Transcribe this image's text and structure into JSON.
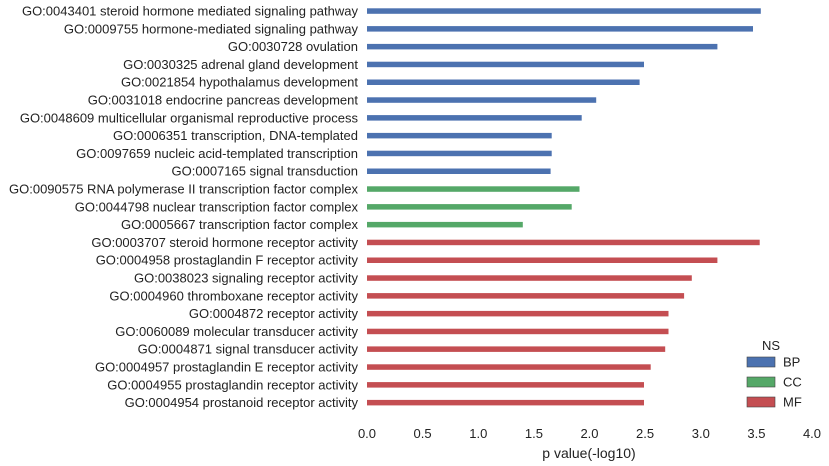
{
  "chart_data": {
    "type": "bar",
    "orientation": "horizontal",
    "xlabel": "p value(-log10)",
    "ylabel": "",
    "xlim": [
      0.0,
      4.0
    ],
    "xticks": [
      "0.0",
      "0.5",
      "1.0",
      "1.5",
      "2.0",
      "2.5",
      "3.0",
      "3.5",
      "4.0"
    ],
    "grid": false,
    "legend": {
      "title": "NS",
      "placement": "lower-right",
      "entries": [
        {
          "name": "BP",
          "color": "#4c72b0"
        },
        {
          "name": "CC",
          "color": "#55a868"
        },
        {
          "name": "MF",
          "color": "#c44e52"
        }
      ]
    },
    "bars": [
      {
        "label": "GO:0043401 steroid hormone mediated signaling pathway",
        "ns": "BP",
        "value": 3.54
      },
      {
        "label": "GO:0009755 hormone-mediated signaling pathway",
        "ns": "BP",
        "value": 3.47
      },
      {
        "label": "GO:0030728 ovulation",
        "ns": "BP",
        "value": 3.15
      },
      {
        "label": "GO:0030325 adrenal gland development",
        "ns": "BP",
        "value": 2.49
      },
      {
        "label": "GO:0021854 hypothalamus development",
        "ns": "BP",
        "value": 2.45
      },
      {
        "label": "GO:0031018 endocrine pancreas development",
        "ns": "BP",
        "value": 2.06
      },
      {
        "label": "GO:0048609 multicellular organismal reproductive process",
        "ns": "BP",
        "value": 1.93
      },
      {
        "label": "GO:0006351 transcription, DNA-templated",
        "ns": "BP",
        "value": 1.66
      },
      {
        "label": "GO:0097659 nucleic acid-templated transcription",
        "ns": "BP",
        "value": 1.66
      },
      {
        "label": "GO:0007165 signal transduction",
        "ns": "BP",
        "value": 1.65
      },
      {
        "label": "GO:0090575 RNA polymerase II transcription factor complex",
        "ns": "CC",
        "value": 1.91
      },
      {
        "label": "GO:0044798 nuclear transcription factor complex",
        "ns": "CC",
        "value": 1.84
      },
      {
        "label": "GO:0005667 transcription factor complex",
        "ns": "CC",
        "value": 1.4
      },
      {
        "label": "GO:0003707 steroid hormone receptor activity",
        "ns": "MF",
        "value": 3.53
      },
      {
        "label": "GO:0004958 prostaglandin F receptor activity",
        "ns": "MF",
        "value": 3.15
      },
      {
        "label": "GO:0038023 signaling receptor activity",
        "ns": "MF",
        "value": 2.92
      },
      {
        "label": "GO:0004960 thromboxane receptor activity",
        "ns": "MF",
        "value": 2.85
      },
      {
        "label": "GO:0004872 receptor activity",
        "ns": "MF",
        "value": 2.71
      },
      {
        "label": "GO:0060089 molecular transducer activity",
        "ns": "MF",
        "value": 2.71
      },
      {
        "label": "GO:0004871 signal transducer activity",
        "ns": "MF",
        "value": 2.68
      },
      {
        "label": "GO:0004957 prostaglandin E receptor activity",
        "ns": "MF",
        "value": 2.55
      },
      {
        "label": "GO:0004955 prostaglandin receptor activity",
        "ns": "MF",
        "value": 2.49
      },
      {
        "label": "GO:0004954 prostanoid receptor activity",
        "ns": "MF",
        "value": 2.49
      }
    ]
  }
}
